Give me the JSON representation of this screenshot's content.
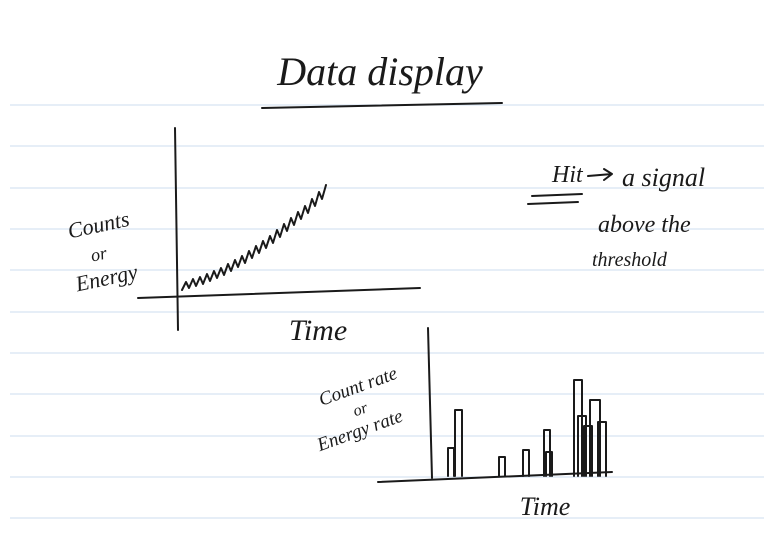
{
  "title": "Data display",
  "sketch1": {
    "y_label": [
      "Counts",
      "or",
      "Energy"
    ],
    "x_label": "Time"
  },
  "note": {
    "term": "Hit",
    "definition": [
      "a signal",
      "above the",
      "threshold"
    ]
  },
  "sketch2": {
    "y_label": [
      "Count rate",
      "or",
      "Energy rate"
    ],
    "x_label": "Time"
  }
}
